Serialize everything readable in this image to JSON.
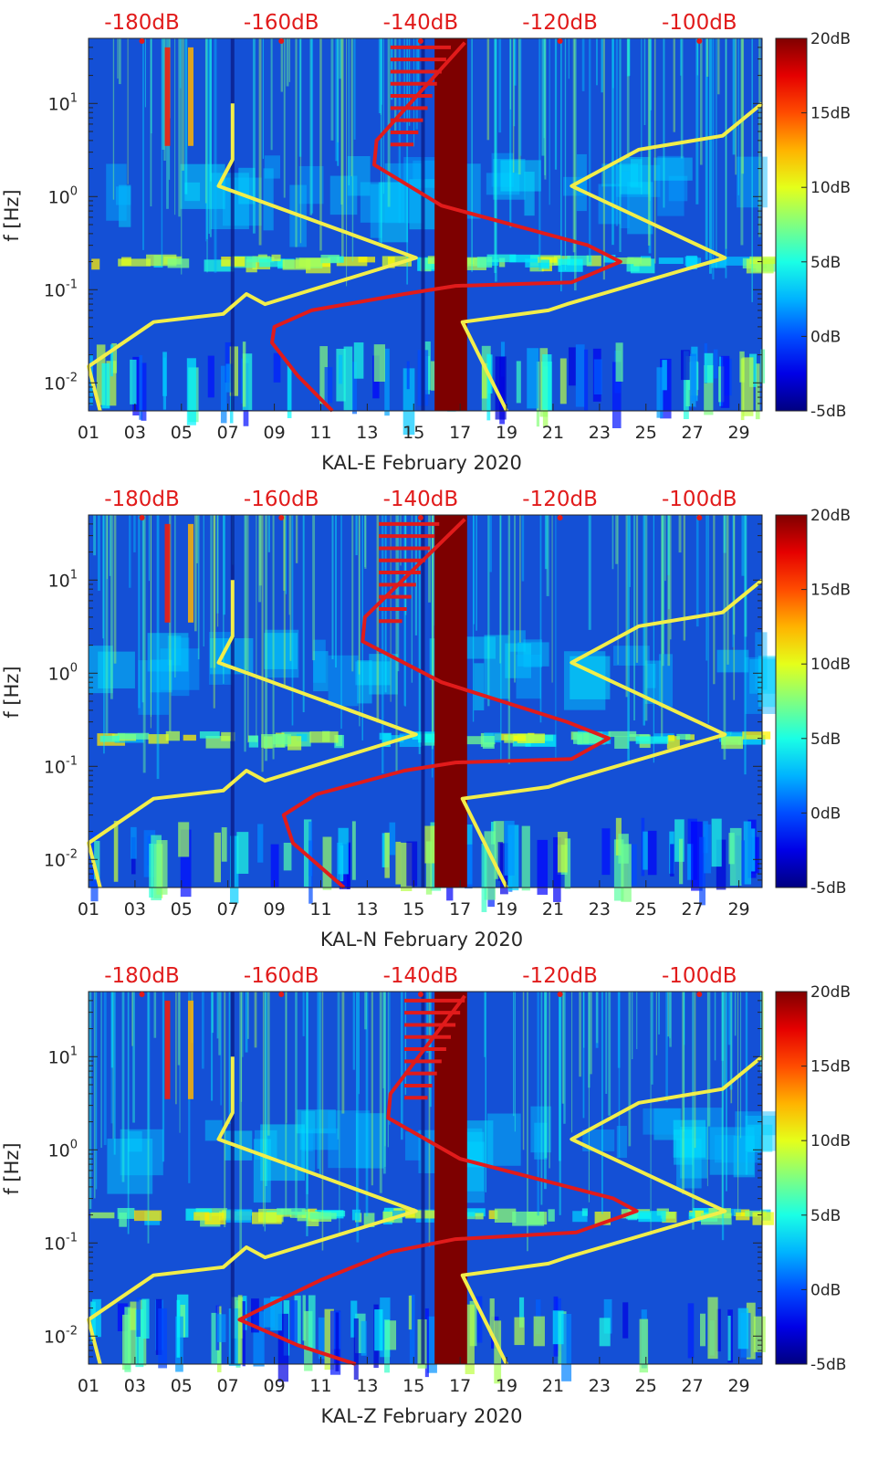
{
  "colors": {
    "background": "#ffffff",
    "spectrogram_base": "#1450d6",
    "noise_model_line": "#f2ee4a",
    "psd_line": "#e11b1b",
    "data_gap": "#7d0000",
    "top_axis_text": "#e11b1b"
  },
  "colorbar": {
    "labels": [
      "20dB",
      "15dB",
      "10dB",
      "5dB",
      "0dB",
      "-5dB"
    ],
    "range": [
      -5,
      20
    ],
    "colormap": "jet"
  },
  "chart_data": [
    {
      "type": "heatmap",
      "title": "",
      "xlabel": "KAL-E February 2020",
      "ylabel": "f [Hz]",
      "yscale": "log",
      "ylim": [
        0.005,
        50
      ],
      "xlim": [
        1,
        30
      ],
      "x_ticks": [
        "01",
        "03",
        "05",
        "07",
        "09",
        "11",
        "13",
        "15",
        "17",
        "19",
        "21",
        "23",
        "25",
        "27",
        "29"
      ],
      "y_ticks": [
        "10^1",
        "10^0",
        "10^-1",
        "10^-2"
      ],
      "top_axis_labels": [
        "-180dB",
        "-160dB",
        "-140dB",
        "-120dB",
        "-100dB"
      ],
      "data_gap_days": [
        15.9,
        17.3
      ],
      "series": [
        {
          "color": "yellow",
          "points": [
            [
              7.2,
              10
            ],
            [
              7.2,
              2.5
            ],
            [
              6.6,
              1.3
            ],
            [
              15.1,
              0.22
            ],
            [
              8.6,
              0.07
            ],
            [
              7.8,
              0.09
            ],
            [
              6.8,
              0.055
            ],
            [
              3.8,
              0.045
            ],
            [
              1.0,
              0.015
            ],
            [
              1.5,
              0.005
            ]
          ]
        },
        {
          "color": "yellow",
          "points": [
            [
              30,
              10
            ],
            [
              28.3,
              4.5
            ],
            [
              24.7,
              3.2
            ],
            [
              21.8,
              1.3
            ],
            [
              28.4,
              0.22
            ],
            [
              21.6,
              0.07
            ],
            [
              20.8,
              0.06
            ],
            [
              17.1,
              0.045
            ],
            [
              19.0,
              0.005
            ]
          ]
        },
        {
          "color": "red",
          "points": [
            [
              17.2,
              45
            ],
            [
              13.4,
              4
            ],
            [
              13.3,
              2.2
            ],
            [
              16.2,
              0.8
            ],
            [
              22.5,
              0.3
            ],
            [
              23.9,
              0.2
            ],
            [
              21.8,
              0.12
            ],
            [
              16.8,
              0.11
            ],
            [
              14.6,
              0.09
            ],
            [
              10.6,
              0.06
            ],
            [
              9.0,
              0.04
            ],
            [
              8.9,
              0.027
            ],
            [
              10.0,
              0.012
            ],
            [
              11.5,
              0.005
            ]
          ]
        }
      ]
    },
    {
      "type": "heatmap",
      "title": "",
      "xlabel": "KAL-N February 2020",
      "ylabel": "f [Hz]",
      "yscale": "log",
      "ylim": [
        0.005,
        50
      ],
      "xlim": [
        1,
        30
      ],
      "x_ticks": [
        "01",
        "03",
        "05",
        "07",
        "09",
        "11",
        "13",
        "15",
        "17",
        "19",
        "21",
        "23",
        "25",
        "27",
        "29"
      ],
      "y_ticks": [
        "10^1",
        "10^0",
        "10^-1",
        "10^-2"
      ],
      "top_axis_labels": [
        "-180dB",
        "-160dB",
        "-140dB",
        "-120dB",
        "-100dB"
      ],
      "data_gap_days": [
        15.9,
        17.3
      ],
      "series": [
        {
          "color": "yellow",
          "points": [
            [
              7.2,
              10
            ],
            [
              7.2,
              2.5
            ],
            [
              6.6,
              1.3
            ],
            [
              15.1,
              0.22
            ],
            [
              8.6,
              0.07
            ],
            [
              7.8,
              0.09
            ],
            [
              6.8,
              0.055
            ],
            [
              3.8,
              0.045
            ],
            [
              1.0,
              0.015
            ],
            [
              1.5,
              0.005
            ]
          ]
        },
        {
          "color": "yellow",
          "points": [
            [
              30,
              10
            ],
            [
              28.3,
              4.5
            ],
            [
              24.7,
              3.2
            ],
            [
              21.8,
              1.3
            ],
            [
              28.4,
              0.22
            ],
            [
              21.6,
              0.07
            ],
            [
              20.8,
              0.06
            ],
            [
              17.1,
              0.045
            ],
            [
              19.0,
              0.005
            ]
          ]
        },
        {
          "color": "red",
          "points": [
            [
              17.2,
              45
            ],
            [
              12.9,
              4
            ],
            [
              12.8,
              2.2
            ],
            [
              16.2,
              0.8
            ],
            [
              21.6,
              0.3
            ],
            [
              23.4,
              0.2
            ],
            [
              21.8,
              0.12
            ],
            [
              16.8,
              0.11
            ],
            [
              14.6,
              0.09
            ],
            [
              10.8,
              0.05
            ],
            [
              9.4,
              0.03
            ],
            [
              9.8,
              0.015
            ],
            [
              12.0,
              0.005
            ]
          ]
        }
      ]
    },
    {
      "type": "heatmap",
      "title": "",
      "xlabel": "KAL-Z February 2020",
      "ylabel": "f [Hz]",
      "yscale": "log",
      "ylim": [
        0.005,
        50
      ],
      "xlim": [
        1,
        30
      ],
      "x_ticks": [
        "01",
        "03",
        "05",
        "07",
        "09",
        "11",
        "13",
        "15",
        "17",
        "19",
        "21",
        "23",
        "25",
        "27",
        "29"
      ],
      "y_ticks": [
        "10^1",
        "10^0",
        "10^-1",
        "10^-2"
      ],
      "top_axis_labels": [
        "-180dB",
        "-160dB",
        "-140dB",
        "-120dB",
        "-100dB"
      ],
      "data_gap_days": [
        15.9,
        17.3
      ],
      "series": [
        {
          "color": "yellow",
          "points": [
            [
              7.2,
              10
            ],
            [
              7.2,
              2.5
            ],
            [
              6.6,
              1.3
            ],
            [
              15.1,
              0.22
            ],
            [
              8.6,
              0.07
            ],
            [
              7.8,
              0.09
            ],
            [
              6.8,
              0.055
            ],
            [
              3.8,
              0.045
            ],
            [
              1.0,
              0.015
            ],
            [
              1.5,
              0.005
            ]
          ]
        },
        {
          "color": "yellow",
          "points": [
            [
              30,
              10
            ],
            [
              28.3,
              4.5
            ],
            [
              24.7,
              3.2
            ],
            [
              21.8,
              1.3
            ],
            [
              28.4,
              0.22
            ],
            [
              21.6,
              0.07
            ],
            [
              20.8,
              0.06
            ],
            [
              17.1,
              0.045
            ],
            [
              19.0,
              0.005
            ]
          ]
        },
        {
          "color": "red",
          "points": [
            [
              17.2,
              45
            ],
            [
              14.0,
              4
            ],
            [
              13.9,
              2.2
            ],
            [
              17.0,
              0.8
            ],
            [
              23.6,
              0.3
            ],
            [
              24.6,
              0.22
            ],
            [
              22.0,
              0.13
            ],
            [
              16.8,
              0.11
            ],
            [
              14.0,
              0.08
            ],
            [
              11.0,
              0.04
            ],
            [
              8.5,
              0.02
            ],
            [
              7.5,
              0.015
            ],
            [
              10.0,
              0.008
            ],
            [
              12.5,
              0.005
            ]
          ]
        }
      ]
    }
  ]
}
